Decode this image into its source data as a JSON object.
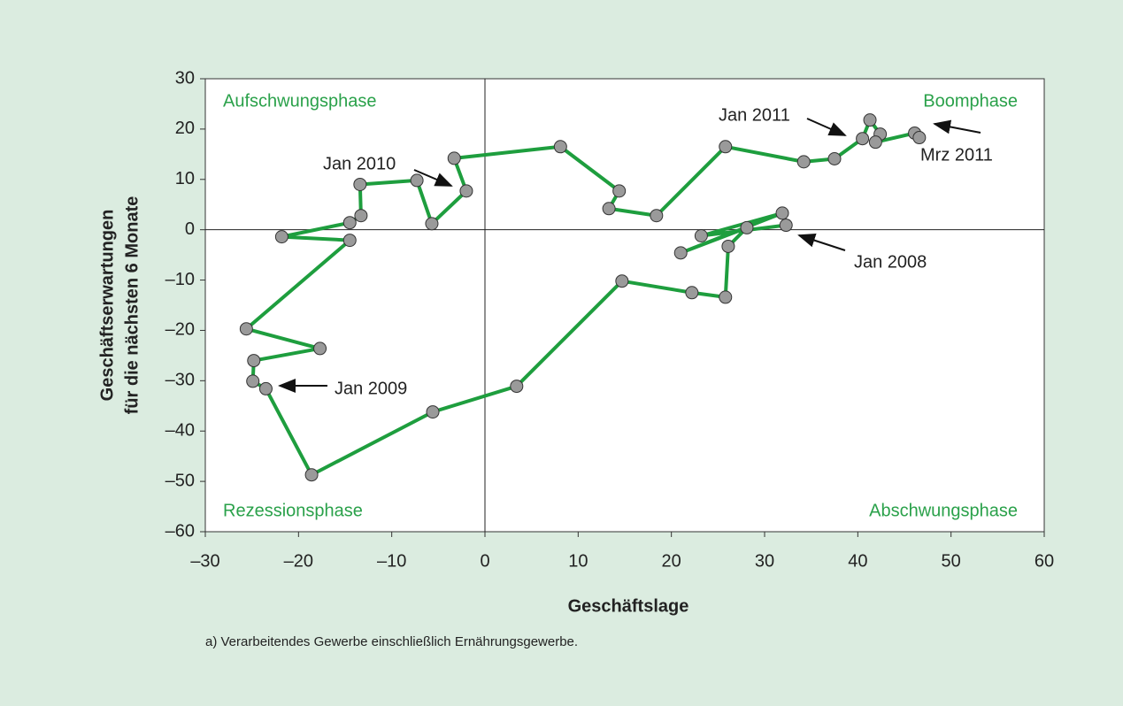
{
  "chart_data": {
    "type": "line",
    "x_label": "Geschäftslage",
    "y_label": [
      "Geschäftserwartungen",
      "für die nächsten 6 Monate"
    ],
    "footnote": "a) Verarbeitendes Gewerbe einschließlich Ernährungsgewerbe.",
    "quadrant_labels": [
      "Aufschwungsphase",
      "Boomphase",
      "Rezessionsphase",
      "Abschwungsphase"
    ],
    "annotations": [
      "Jan 2008",
      "Jan 2009",
      "Jan 2010",
      "Jan 2011",
      "Mrz 2011"
    ],
    "x": [
      32.3,
      23.2,
      31.9,
      21.0,
      28.1,
      26.1,
      25.8,
      22.2,
      14.7,
      3.4,
      -5.6,
      -18.6,
      -23.5,
      -24.9,
      -24.8,
      -17.7,
      -25.6,
      -14.5,
      -21.8,
      -14.5,
      -13.3,
      -13.4,
      -7.3,
      -5.7,
      -2.0,
      -3.3,
      8.1,
      14.4,
      13.3,
      18.4,
      25.8,
      34.2,
      37.5,
      40.5,
      41.3,
      42.4,
      41.9,
      46.1,
      46.6
    ],
    "series": [
      {
        "color": "#1e9e3e",
        "values": [
          0.9,
          -1.2,
          3.3,
          -4.6,
          0.4,
          -3.3,
          -13.4,
          -12.5,
          -10.2,
          -31.1,
          -36.2,
          -48.7,
          -31.6,
          -30.1,
          -26.0,
          -23.6,
          -19.7,
          -2.1,
          -1.4,
          1.4,
          2.8,
          9.0,
          9.8,
          1.2,
          7.7,
          14.2,
          16.5,
          7.7,
          4.2,
          2.8,
          16.5,
          13.5,
          14.1,
          18.1,
          21.8,
          19.0,
          17.4,
          19.2,
          18.3
        ]
      }
    ],
    "point_color": "#9a9a9a",
    "quadrant_color": "#2aa14a",
    "xlim": [
      -30,
      60
    ],
    "ylim": [
      -60,
      30
    ],
    "xticks": [
      {
        "value": -30,
        "label": "–30"
      },
      {
        "value": -20,
        "label": "–20"
      },
      {
        "value": -10,
        "label": "–10"
      },
      0,
      10,
      20,
      30,
      40,
      50,
      60
    ],
    "yticks": [
      {
        "value": -60,
        "label": "–60"
      },
      {
        "value": -50,
        "label": "–50"
      },
      {
        "value": -40,
        "label": "–40"
      },
      {
        "value": -30,
        "label": "–30"
      },
      {
        "value": -20,
        "label": "–20"
      },
      {
        "value": -10,
        "label": "–10"
      },
      0,
      10,
      20,
      30
    ]
  }
}
